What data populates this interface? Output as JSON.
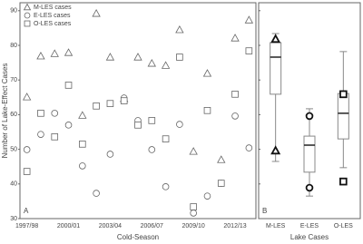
{
  "chart_data": [
    {
      "type": "scatter",
      "panel_label": "A",
      "x_label": "Cold-Season",
      "y_label": "Number of Lake-Effect Cases",
      "categories": [
        "1997/98",
        null,
        null,
        "2000/01",
        null,
        null,
        "2003/04",
        null,
        null,
        "2006/07",
        null,
        null,
        "2009/10",
        null,
        null,
        "2012/13",
        null
      ],
      "ylim": [
        30,
        92.3
      ],
      "yticks": [
        30,
        40,
        50,
        60,
        70,
        80,
        90
      ],
      "legend": "top-left",
      "series": [
        {
          "name": "M-LES cases",
          "marker": "triangle",
          "color": "#666666",
          "values": [
            65.1,
            76.9,
            77.6,
            77.9,
            59.8,
            89.2,
            76.6,
            64.6,
            76.6,
            74.8,
            74.2,
            84.5,
            49.4,
            71.9,
            47.0,
            82.1,
            87.3
          ]
        },
        {
          "name": "E-LES cases",
          "marker": "circle",
          "color": "#666666",
          "values": [
            49.9,
            54.3,
            60.4,
            57.0,
            45.2,
            37.3,
            48.6,
            64.8,
            58.3,
            49.9,
            39.2,
            57.2,
            31.6,
            36.5,
            40.2,
            59.6,
            50.4
          ]
        },
        {
          "name": "O-LES cases",
          "marker": "square",
          "color": "#666666",
          "values": [
            43.6,
            60.4,
            53.6,
            68.5,
            51.5,
            62.5,
            63.2,
            64.0,
            57.0,
            58.3,
            53.0,
            76.6,
            33.4,
            61.2,
            40.2,
            65.9,
            78.4
          ]
        }
      ]
    },
    {
      "type": "box",
      "panel_label": "B",
      "x_label": "Lake Cases",
      "categories": [
        "M-LES",
        "E-LES",
        "O-LES"
      ],
      "markers": [
        "triangle",
        "circle",
        "square"
      ],
      "ylim": [
        30,
        92.3
      ],
      "yticks": [
        30,
        40,
        50,
        60,
        70,
        80,
        90
      ],
      "color": "#888888",
      "whisker_low": [
        46.5,
        36.5,
        44.7
      ],
      "q1": [
        65.9,
        43.4,
        53.0
      ],
      "median": [
        76.6,
        51.2,
        60.4
      ],
      "q3": [
        80.8,
        53.8,
        66.1
      ],
      "whisker_high": [
        83.4,
        61.7,
        78.2
      ],
      "marker_low": [
        49.6,
        38.9,
        40.7
      ],
      "marker_high": [
        81.8,
        59.6,
        65.9
      ]
    }
  ]
}
